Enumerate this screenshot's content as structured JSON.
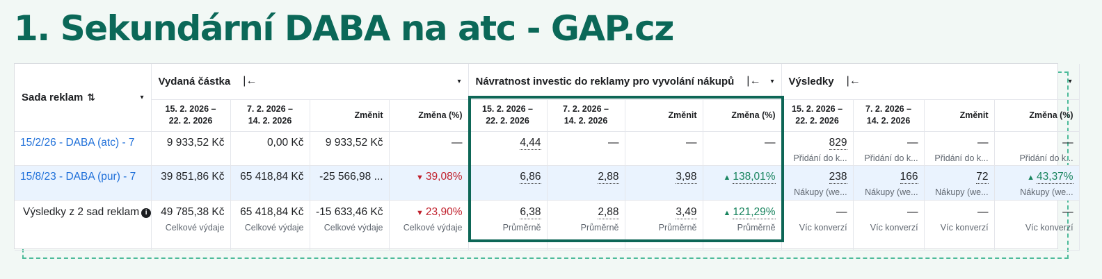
{
  "title": "1. Sekundární DABA na atc - GAP.cz",
  "colors": {
    "accent": "#0b6858",
    "link": "#1e6fd9",
    "negative": "#c0202c",
    "positive": "#18845e",
    "row_highlight": "#eaf3fe"
  },
  "header": {
    "sada": {
      "label": "Sada reklam",
      "sort_icon": "sort-icon",
      "caret": "▾"
    },
    "groups": [
      {
        "label": "Vydaná částka",
        "pin": "|←",
        "caret": "▾"
      },
      {
        "label": "Návratnost investic do reklamy pro vyvolání nákupů",
        "pin": "|←",
        "caret": "▾"
      },
      {
        "label": "Výsledky",
        "pin": "|←",
        "caret": "▾"
      }
    ],
    "sub": [
      [
        "15. 2. 2026 –",
        "22. 2. 2026"
      ],
      [
        "7. 2. 2026 –",
        "14. 2. 2026"
      ],
      [
        "Změnit",
        ""
      ],
      [
        "Změna (%)",
        ""
      ]
    ]
  },
  "rows": [
    {
      "name": "15/2/26 - DABA (atc) - 7",
      "spend": [
        "9 933,52 Kč",
        "0,00 Kč",
        "9 933,52 Kč",
        "—"
      ],
      "roas": [
        "4,44",
        "—",
        "—",
        "—"
      ],
      "results": [
        "829",
        "—",
        "—",
        "—"
      ],
      "results_sub": [
        "Přidání do k...",
        "Přidání do k...",
        "Přidání do k...",
        "Přidání do k..."
      ]
    },
    {
      "name": "15/8/23 - DABA (pur) - 7",
      "spend": [
        "39 851,86 Kč",
        "65 418,84 Kč",
        "-25 566,98 ...",
        "39,08%"
      ],
      "roas": [
        "6,86",
        "2,88",
        "3,98",
        "138,01%"
      ],
      "results": [
        "238",
        "166",
        "72",
        "43,37%"
      ],
      "results_sub": [
        "Nákupy (we...",
        "Nákupy (we...",
        "Nákupy (we...",
        "Nákupy (we..."
      ]
    },
    {
      "name": "Výsledky z 2 sad reklam",
      "spend": [
        "49 785,38 Kč",
        "65 418,84 Kč",
        "-15 633,46 Kč",
        "23,90%"
      ],
      "spend_sub": "Celkové výdaje",
      "roas": [
        "6,38",
        "2,88",
        "3,49",
        "121,29%"
      ],
      "roas_sub": "Průměrně",
      "results": [
        "—",
        "—",
        "—",
        "—"
      ],
      "results_sub": [
        "Víc konverzí",
        "Víc konverzí",
        "Víc konverzí",
        "Víc konverzí"
      ]
    }
  ]
}
